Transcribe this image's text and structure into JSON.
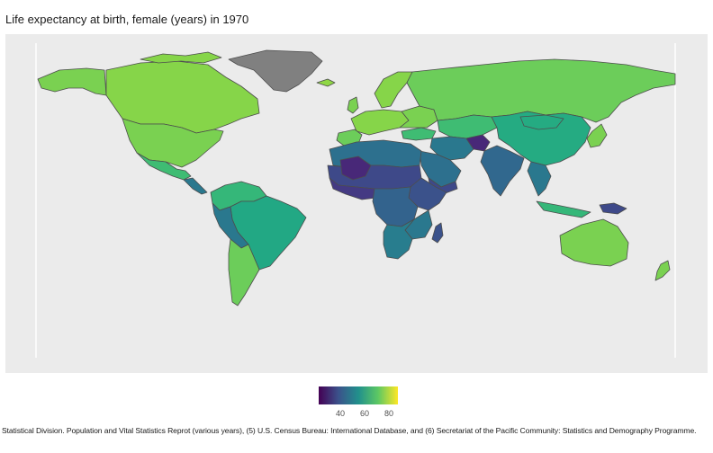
{
  "title": "Life expectancy at birth, female (years) in 1970",
  "legend": {
    "ticks": [
      "40",
      "60",
      "80"
    ],
    "colors": [
      "#440154",
      "#3b528b",
      "#21908c",
      "#5dc863",
      "#fde725"
    ],
    "no_data_color": "#808080"
  },
  "caption": "Statistical Division. Population and Vital Statistics Reprot (various years), (5) U.S. Census Bureau: International Database, and (6) Secretariat of the Pacific Community: Statistics and Demography Programme."
}
